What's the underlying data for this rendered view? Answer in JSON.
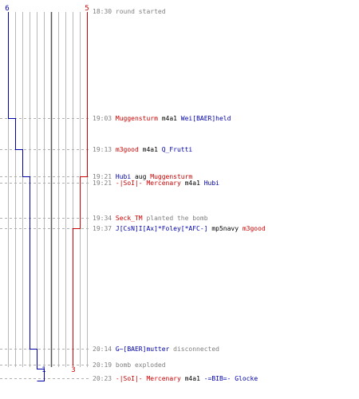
{
  "colors": {
    "team_blue": "#0000aa",
    "team_red": "#cc0000",
    "time": "#808080",
    "text": "#000000",
    "note": "#808080",
    "grid": "#b8b8b8",
    "center_line": "#555555",
    "dash": "#b0b0b0"
  },
  "counts": {
    "blue_start": "6",
    "red_start": "5",
    "blue_end": "1",
    "red_end": "3"
  },
  "events": [
    {
      "time": "18:30",
      "parts": [
        {
          "text": "round started",
          "role": "note"
        }
      ]
    },
    {
      "time": "19:03",
      "parts": [
        {
          "text": "Muggensturm",
          "role": "red"
        },
        {
          "text": " m4a1 ",
          "role": "text"
        },
        {
          "text": "Wei[BAER]held",
          "role": "blue"
        }
      ]
    },
    {
      "time": "19:13",
      "parts": [
        {
          "text": "m3good",
          "role": "red"
        },
        {
          "text": " m4a1 ",
          "role": "text"
        },
        {
          "text": "Q_Frutti",
          "role": "blue"
        }
      ]
    },
    {
      "time": "19:21",
      "parts": [
        {
          "text": "Hubi",
          "role": "blue"
        },
        {
          "text": " aug ",
          "role": "text"
        },
        {
          "text": "Muggensturm",
          "role": "red"
        }
      ]
    },
    {
      "time": "19:21",
      "parts": [
        {
          "text": "-|SoI|- Mercenary",
          "role": "red"
        },
        {
          "text": " m4a1 ",
          "role": "text"
        },
        {
          "text": "Hubi",
          "role": "blue"
        }
      ]
    },
    {
      "time": "19:34",
      "parts": [
        {
          "text": "Seck_TM",
          "role": "red"
        },
        {
          "text": " planted the bomb",
          "role": "note"
        }
      ]
    },
    {
      "time": "19:37",
      "parts": [
        {
          "text": "J[CsN]I[Ax]*Foley[*AFC-]",
          "role": "blue"
        },
        {
          "text": " mp5navy ",
          "role": "text"
        },
        {
          "text": "m3good",
          "role": "red"
        }
      ]
    },
    {
      "time": "20:14",
      "parts": [
        {
          "text": "G~[BAER]mutter",
          "role": "blue"
        },
        {
          "text": " disconnected",
          "role": "note"
        }
      ]
    },
    {
      "time": "20:19",
      "parts": [
        {
          "text": "bomb exploded",
          "role": "note"
        }
      ]
    },
    {
      "time": "20:23",
      "parts": [
        {
          "text": "-|SoI|- Mercenary",
          "role": "red"
        },
        {
          "text": " m4a1 ",
          "role": "text"
        },
        {
          "text": "-=BIB=- Glocke",
          "role": "blue"
        }
      ]
    }
  ]
}
